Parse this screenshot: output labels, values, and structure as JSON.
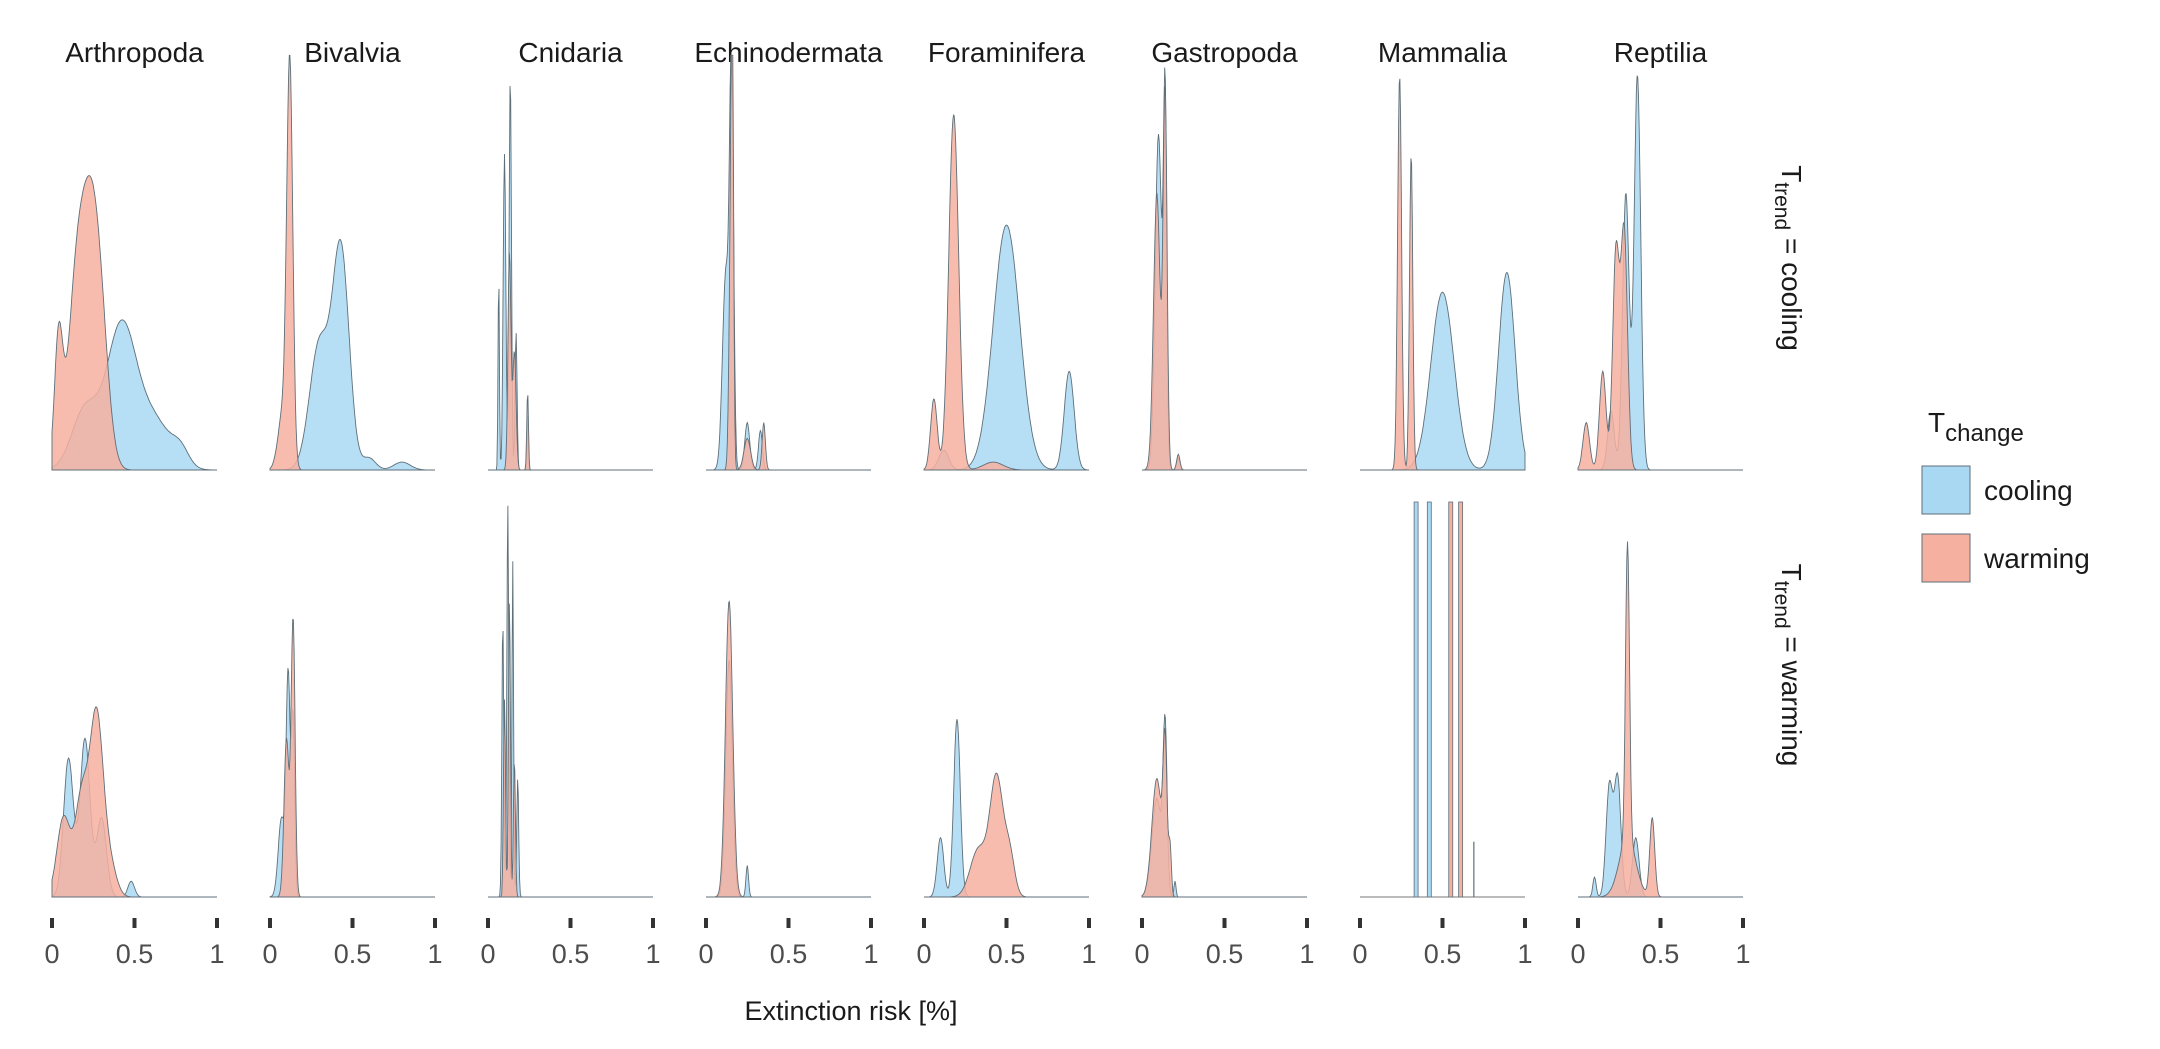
{
  "chart_data": {
    "type": "area",
    "subtype": "faceted density (ridge) plot",
    "xlabel": "Extinction risk [%]",
    "ylabel": "",
    "xlim": [
      0,
      1
    ],
    "x_ticks": [
      0,
      0.5,
      1
    ],
    "x_tick_labels": [
      "0",
      "0.5",
      "1"
    ],
    "grid": false,
    "legend": {
      "title_main": "T",
      "title_sub": "change",
      "placement": "right",
      "entries": [
        {
          "label": "cooling",
          "color": "#a9d8f2"
        },
        {
          "label": "warming",
          "color": "#f6b0a0"
        }
      ]
    },
    "columns": [
      "Arthropoda",
      "Bivalvia",
      "Cnidaria",
      "Echinodermata",
      "Foraminifera",
      "Gastropoda",
      "Mammalia",
      "Reptilia"
    ],
    "rows": [
      {
        "id": "cooling",
        "label_main": "T",
        "label_sub": "trend",
        "label_rest": " = cooling"
      },
      {
        "id": "warming",
        "label_main": "T",
        "label_sub": "trend",
        "label_rest": " = warming"
      }
    ],
    "series_colors": {
      "cooling": "#a9d8f2",
      "warming": "#f6b0a0",
      "outline": "#5f6f78"
    },
    "note": "Peaks give relative density heights (0-1 of panel height): [center x, height, width]",
    "panels": {
      "cooling": {
        "Arthropoda": {
          "cooling": [
            [
              0.2,
              0.15,
              0.08
            ],
            [
              0.42,
              0.36,
              0.09
            ],
            [
              0.62,
              0.12,
              0.1
            ],
            [
              0.78,
              0.04,
              0.05
            ]
          ],
          "warming": [
            [
              0.04,
              0.32,
              0.025
            ],
            [
              0.14,
              0.35,
              0.05
            ],
            [
              0.23,
              0.6,
              0.06
            ],
            [
              0.3,
              0.2,
              0.05
            ]
          ]
        },
        "Bivalvia": {
          "cooling": [
            [
              0.3,
              0.32,
              0.06
            ],
            [
              0.43,
              0.55,
              0.05
            ],
            [
              0.6,
              0.03,
              0.04
            ],
            [
              0.8,
              0.02,
              0.05
            ]
          ],
          "warming": [
            [
              0.08,
              0.15,
              0.03
            ],
            [
              0.12,
              1.0,
              0.018
            ]
          ]
        },
        "Cnidaria": {
          "cooling": [
            [
              0.065,
              0.5,
              0.004
            ],
            [
              0.1,
              0.8,
              0.008
            ],
            [
              0.135,
              1.0,
              0.007
            ],
            [
              0.17,
              0.35,
              0.006
            ],
            [
              0.24,
              0.15,
              0.004
            ]
          ],
          "warming": [
            [
              0.13,
              0.55,
              0.009
            ],
            [
              0.16,
              0.3,
              0.01
            ],
            [
              0.24,
              0.2,
              0.005
            ]
          ]
        },
        "Echinodermata": {
          "cooling": [
            [
              0.12,
              0.5,
              0.02
            ],
            [
              0.155,
              1.0,
              0.012
            ],
            [
              0.25,
              0.12,
              0.015
            ],
            [
              0.33,
              0.1,
              0.012
            ]
          ],
          "warming": [
            [
              0.15,
              0.6,
              0.01
            ],
            [
              0.16,
              0.95,
              0.007
            ],
            [
              0.25,
              0.08,
              0.02
            ],
            [
              0.35,
              0.12,
              0.01
            ]
          ]
        },
        "Foraminifera": {
          "cooling": [
            [
              0.12,
              0.05,
              0.03
            ],
            [
              0.5,
              0.62,
              0.08
            ],
            [
              0.88,
              0.25,
              0.03
            ]
          ],
          "warming": [
            [
              0.06,
              0.18,
              0.02
            ],
            [
              0.18,
              0.9,
              0.03
            ],
            [
              0.42,
              0.02,
              0.06
            ]
          ]
        },
        "Gastropoda": {
          "cooling": [
            [
              0.1,
              0.85,
              0.02
            ],
            [
              0.14,
              0.9,
              0.01
            ],
            [
              0.22,
              0.03,
              0.01
            ]
          ],
          "warming": [
            [
              0.09,
              0.7,
              0.02
            ],
            [
              0.14,
              0.95,
              0.012
            ],
            [
              0.22,
              0.04,
              0.01
            ]
          ]
        },
        "Mammalia": {
          "cooling": [
            [
              0.5,
              0.45,
              0.07
            ],
            [
              0.89,
              0.5,
              0.05
            ]
          ],
          "warming": [
            [
              0.24,
              1.0,
              0.012
            ],
            [
              0.31,
              0.8,
              0.01
            ]
          ]
        },
        "Reptilia": {
          "cooling": [
            [
              0.2,
              0.15,
              0.02
            ],
            [
              0.29,
              0.7,
              0.02
            ],
            [
              0.36,
              1.0,
              0.02
            ]
          ],
          "warming": [
            [
              0.05,
              0.12,
              0.02
            ],
            [
              0.15,
              0.25,
              0.02
            ],
            [
              0.23,
              0.55,
              0.02
            ],
            [
              0.28,
              0.6,
              0.02
            ]
          ]
        }
      },
      "warming": {
        "Arthropoda": {
          "cooling": [
            [
              0.1,
              0.35,
              0.03
            ],
            [
              0.2,
              0.4,
              0.03
            ],
            [
              0.3,
              0.2,
              0.03
            ],
            [
              0.48,
              0.04,
              0.02
            ]
          ],
          "warming": [
            [
              0.07,
              0.2,
              0.04
            ],
            [
              0.18,
              0.25,
              0.04
            ],
            [
              0.27,
              0.45,
              0.04
            ],
            [
              0.35,
              0.08,
              0.04
            ]
          ]
        },
        "Bivalvia": {
          "cooling": [
            [
              0.07,
              0.2,
              0.02
            ],
            [
              0.11,
              0.55,
              0.012
            ],
            [
              0.14,
              0.45,
              0.01
            ]
          ],
          "warming": [
            [
              0.1,
              0.4,
              0.015
            ],
            [
              0.14,
              0.7,
              0.012
            ]
          ]
        },
        "Cnidaria": {
          "cooling": [
            [
              0.09,
              0.7,
              0.006
            ],
            [
              0.12,
              1.0,
              0.006
            ],
            [
              0.15,
              0.85,
              0.005
            ],
            [
              0.18,
              0.3,
              0.006
            ]
          ],
          "warming": [
            [
              0.1,
              0.5,
              0.006
            ],
            [
              0.13,
              0.75,
              0.006
            ],
            [
              0.16,
              0.35,
              0.006
            ]
          ]
        },
        "Echinodermata": {
          "cooling": [
            [
              0.14,
              0.6,
              0.02
            ],
            [
              0.25,
              0.08,
              0.008
            ]
          ],
          "warming": [
            [
              0.14,
              0.75,
              0.022
            ]
          ]
        },
        "Foraminifera": {
          "cooling": [
            [
              0.1,
              0.15,
              0.02
            ],
            [
              0.2,
              0.45,
              0.02
            ]
          ],
          "warming": [
            [
              0.33,
              0.12,
              0.05
            ],
            [
              0.44,
              0.3,
              0.04
            ],
            [
              0.52,
              0.1,
              0.03
            ]
          ]
        },
        "Gastropoda": {
          "cooling": [
            [
              0.09,
              0.25,
              0.03
            ],
            [
              0.14,
              0.4,
              0.012
            ],
            [
              0.2,
              0.04,
              0.006
            ]
          ],
          "warming": [
            [
              0.09,
              0.3,
              0.03
            ],
            [
              0.14,
              0.35,
              0.012
            ],
            [
              0.17,
              0.12,
              0.008
            ]
          ]
        },
        "Mammalia": {
          "cooling_lines": [
            0.34,
            0.42
          ],
          "warming_lines": [
            0.55,
            0.61
          ],
          "extra_line": [
            0.69,
            0.14
          ]
        },
        "Reptilia": {
          "cooling": [
            [
              0.1,
              0.05,
              0.01
            ],
            [
              0.19,
              0.28,
              0.02
            ],
            [
              0.24,
              0.3,
              0.02
            ],
            [
              0.35,
              0.15,
              0.02
            ]
          ],
          "warming": [
            [
              0.3,
              0.75,
              0.012
            ],
            [
              0.3,
              0.15,
              0.05
            ],
            [
              0.45,
              0.2,
              0.015
            ]
          ]
        }
      }
    }
  }
}
